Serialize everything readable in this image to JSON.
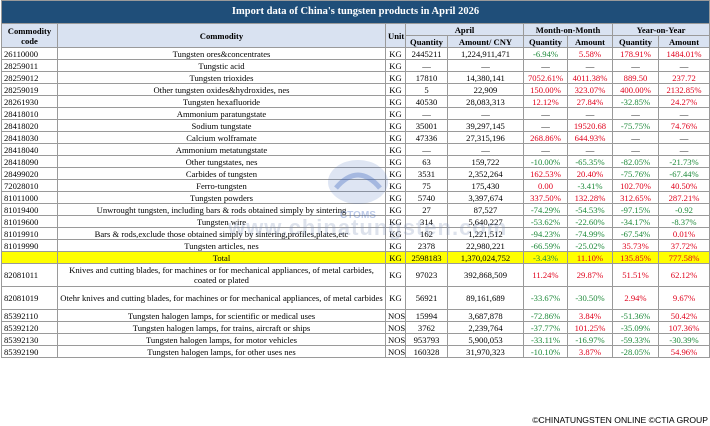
{
  "title": "Import data of China's tungsten products in April 2026",
  "headers": {
    "code": "Commodity code",
    "commodity": "Commodity",
    "unit": "Unit",
    "april": "April",
    "mom": "Month-on-Month",
    "yoy": "Year-on-Year",
    "quantity": "Quantity",
    "amount_cny": "Amount/ CNY",
    "amount": "Amount"
  },
  "rows": [
    {
      "code": "26110000",
      "name": "Tungsten ores&concentrates",
      "unit": "KG",
      "qty": "2445211",
      "amt": "1,224,911,471",
      "mq": "-6.94%",
      "ma": "5.58%",
      "yq": "178.91%",
      "ya": "1484.01%"
    },
    {
      "code": "28259011",
      "name": "Tungstic acid",
      "unit": "KG",
      "qty": "—",
      "amt": "—",
      "mq": "—",
      "ma": "—",
      "yq": "—",
      "ya": "—"
    },
    {
      "code": "28259012",
      "name": "Tungsten trioxides",
      "unit": "KG",
      "qty": "17810",
      "amt": "14,380,141",
      "mq": "7052.61%",
      "ma": "4011.38%",
      "yq": "889.50",
      "ya": "237.72"
    },
    {
      "code": "28259019",
      "name": "Other tungsten oxides&hydroxides, nes",
      "unit": "KG",
      "qty": "5",
      "amt": "22,909",
      "mq": "150.00%",
      "ma": "323.07%",
      "yq": "400.00%",
      "ya": "2132.85%"
    },
    {
      "code": "28261930",
      "name": "Tungsten hexafluoride",
      "unit": "KG",
      "qty": "40530",
      "amt": "28,083,313",
      "mq": "12.12%",
      "ma": "27.84%",
      "yq": "-32.85%",
      "ya": "24.27%"
    },
    {
      "code": "28418010",
      "name": "Ammonium paratungstate",
      "unit": "KG",
      "qty": "—",
      "amt": "—",
      "mq": "—",
      "ma": "—",
      "yq": "—",
      "ya": "—"
    },
    {
      "code": "28418020",
      "name": "Sodium tungstate",
      "unit": "KG",
      "qty": "35001",
      "amt": "39,297,145",
      "mq": "—",
      "ma": "19520.68",
      "yq": "-75.75%",
      "ya": "74.76%"
    },
    {
      "code": "28418030",
      "name": "Calcium wolframate",
      "unit": "KG",
      "qty": "47336",
      "amt": "27,315,196",
      "mq": "268.86%",
      "ma": "644.93%",
      "yq": "—",
      "ya": "—"
    },
    {
      "code": "28418040",
      "name": "Ammonium metatungstate",
      "unit": "KG",
      "qty": "—",
      "amt": "—",
      "mq": "—",
      "ma": "—",
      "yq": "—",
      "ya": "—"
    },
    {
      "code": "28418090",
      "name": "Other tungstates, nes",
      "unit": "KG",
      "qty": "63",
      "amt": "159,722",
      "mq": "-10.00%",
      "ma": "-65.35%",
      "yq": "-82.05%",
      "ya": "-21.73%"
    },
    {
      "code": "28499020",
      "name": "Carbides of tungsten",
      "unit": "KG",
      "qty": "3531",
      "amt": "2,352,264",
      "mq": "162.53%",
      "ma": "20.40%",
      "yq": "-75.76%",
      "ya": "-67.44%"
    },
    {
      "code": "72028010",
      "name": "Ferro-tungsten",
      "unit": "KG",
      "qty": "75",
      "amt": "175,430",
      "mq": "0.00",
      "ma": "-3.41%",
      "yq": "102.70%",
      "ya": "40.50%"
    },
    {
      "code": "81011000",
      "name": "Tungsten powders",
      "unit": "KG",
      "qty": "5740",
      "amt": "3,397,674",
      "mq": "337.50%",
      "ma": "132.28%",
      "yq": "312.65%",
      "ya": "287.21%"
    },
    {
      "code": "81019400",
      "name": "Unwrought tungsten, including bars & rods obtained simply by sintering",
      "unit": "KG",
      "qty": "27",
      "amt": "87,527",
      "mq": "-74.29%",
      "ma": "-54.53%",
      "yq": "-97.15%",
      "ya": "-0.92"
    },
    {
      "code": "81019600",
      "name": "Tungsten wire",
      "unit": "KG",
      "qty": "314",
      "amt": "5,640,227",
      "mq": "-53.62%",
      "ma": "-22.60%",
      "yq": "-34.17%",
      "ya": "-8.37%"
    },
    {
      "code": "81019910",
      "name": "Bars & rods,exclude those obtained simply by sintering,profiles,plates,etc",
      "unit": "KG",
      "qty": "162",
      "amt": "1,221,512",
      "mq": "-94.23%",
      "ma": "-74.99%",
      "yq": "-67.54%",
      "ya": "0.01%"
    },
    {
      "code": "81019990",
      "name": "Tungsten articles, nes",
      "unit": "KG",
      "qty": "2378",
      "amt": "22,980,221",
      "mq": "-66.59%",
      "ma": "-25.02%",
      "yq": "35.73%",
      "ya": "37.72%"
    },
    {
      "code": "",
      "name": "Total",
      "unit": "KG",
      "qty": "2598183",
      "amt": "1,370,024,752",
      "mq": "-3.43%",
      "ma": "11.10%",
      "yq": "135.85%",
      "ya": "777.58%",
      "total": true
    },
    {
      "code": "82081011",
      "name": "Knives and cutting blades, for machines or for mechanical appliances, of metal carbides, coated or plated",
      "unit": "KG",
      "qty": "97023",
      "amt": "392,868,509",
      "mq": "11.24%",
      "ma": "29.87%",
      "yq": "51.51%",
      "ya": "62.12%",
      "tall": true
    },
    {
      "code": "82081019",
      "name": "Otehr knives and cutting blades, for machines or for mechanical appliances, of metal carbides",
      "unit": "KG",
      "qty": "56921",
      "amt": "89,161,689",
      "mq": "-33.67%",
      "ma": "-30.50%",
      "yq": "2.94%",
      "ya": "9.67%",
      "tall": true
    },
    {
      "code": "85392110",
      "name": "Tungsten halogen lamps, for scientific or medical uses",
      "unit": "NOS",
      "qty": "15994",
      "amt": "3,687,878",
      "mq": "-72.86%",
      "ma": "3.84%",
      "yq": "-51.36%",
      "ya": "50.42%"
    },
    {
      "code": "85392120",
      "name": "Tungsten halogen lamps, for trains, aircraft or ships",
      "unit": "NOS",
      "qty": "3762",
      "amt": "2,239,764",
      "mq": "-37.77%",
      "ma": "101.25%",
      "yq": "-35.09%",
      "ya": "107.36%"
    },
    {
      "code": "85392130",
      "name": "Tungsten halogen lamps, for motor vehicles",
      "unit": "NOS",
      "qty": "953793",
      "amt": "5,900,053",
      "mq": "-33.11%",
      "ma": "-16.97%",
      "yq": "-59.33%",
      "ya": "-30.39%"
    },
    {
      "code": "85392190",
      "name": "Tungsten halogen lamps, for other uses nes",
      "unit": "NOS",
      "qty": "160328",
      "amt": "31,970,323",
      "mq": "-10.10%",
      "ma": "3.87%",
      "yq": "-28.05%",
      "ya": "54.96%"
    }
  ],
  "watermark": {
    "text": "www.chinatungsten.com",
    "logo_label": "CTOMS"
  },
  "footer": "©CHINATUNGSTEN ONLINE  ©CTIA GROUP",
  "colors": {
    "title_bg": "#1f4e79",
    "header_bg": "#d9e2f1",
    "total_bg": "#ffff00",
    "positive": "#e0001b",
    "negative": "#1e8a3a"
  }
}
